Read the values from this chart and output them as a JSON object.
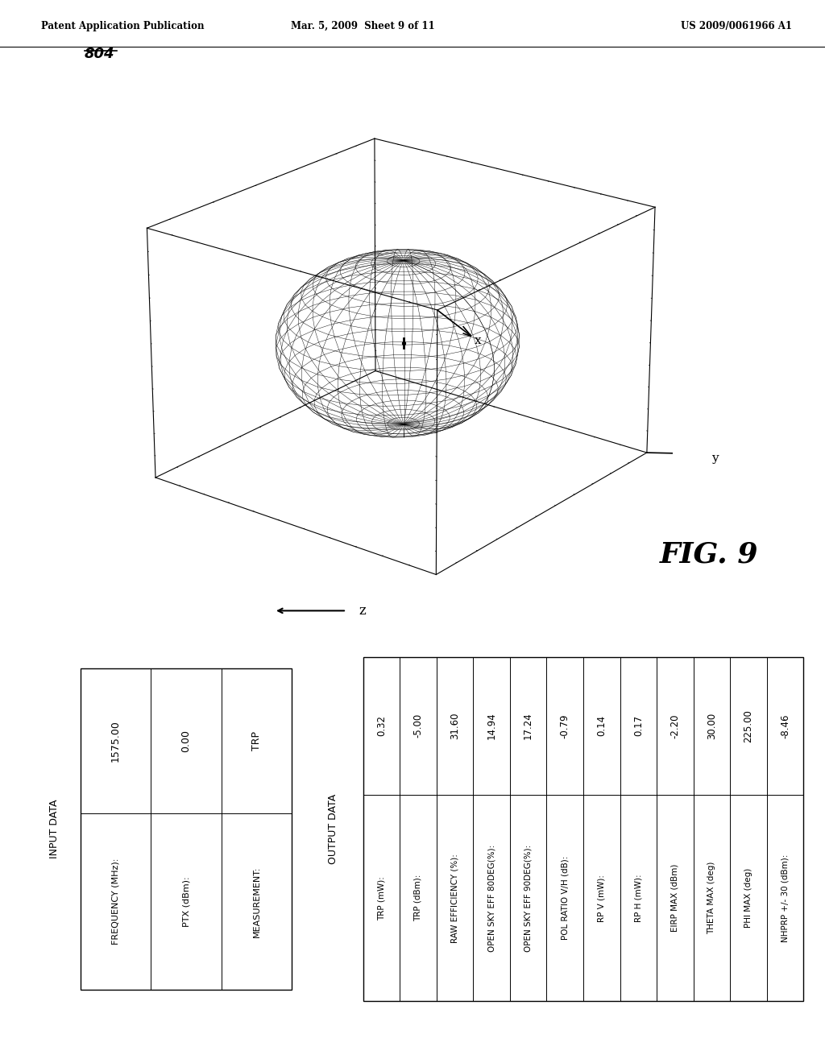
{
  "header_left": "Patent Application Publication",
  "header_mid": "Mar. 5, 2009  Sheet 9 of 11",
  "header_right": "US 2009/0061966 A1",
  "fig_label": "804",
  "fig_number": "FIG. 9",
  "axis_x_label": "x",
  "axis_y_label": "y",
  "axis_z_label": "z",
  "input_data_title": "INPUT DATA",
  "input_rows": [
    [
      "FREQUENCY (MHz):",
      "1575.00"
    ],
    [
      "PTX (dBm):",
      "0.00"
    ],
    [
      "MEASUREMENT:",
      "TRP"
    ]
  ],
  "output_data_title": "OUTPUT DATA",
  "output_rows": [
    [
      "TRP (mW):",
      "0.32"
    ],
    [
      "TRP (dBm):",
      "-5.00"
    ],
    [
      "RAW EFFICIENCY (%):",
      "31.60"
    ],
    [
      "OPEN SKY EFF 80DEG(%):",
      "14.94"
    ],
    [
      "OPEN SKY EFF 90DEG(%):",
      "17.24"
    ],
    [
      "POL RATIO V/H (dB):",
      "-0.79"
    ],
    [
      "RP V (mW):",
      "0.14"
    ],
    [
      "RP H (mW):",
      "0.17"
    ],
    [
      "EIRP MAX (dBm)",
      "-2.20"
    ],
    [
      "THETA MAX (deg)",
      "30.00"
    ],
    [
      "PHI MAX (deg)",
      "225.00"
    ],
    [
      "NHPRP +/- 30 (dBm):",
      "-8.46"
    ]
  ],
  "bg_color": "#ffffff",
  "line_color": "#000000",
  "text_color": "#000000"
}
